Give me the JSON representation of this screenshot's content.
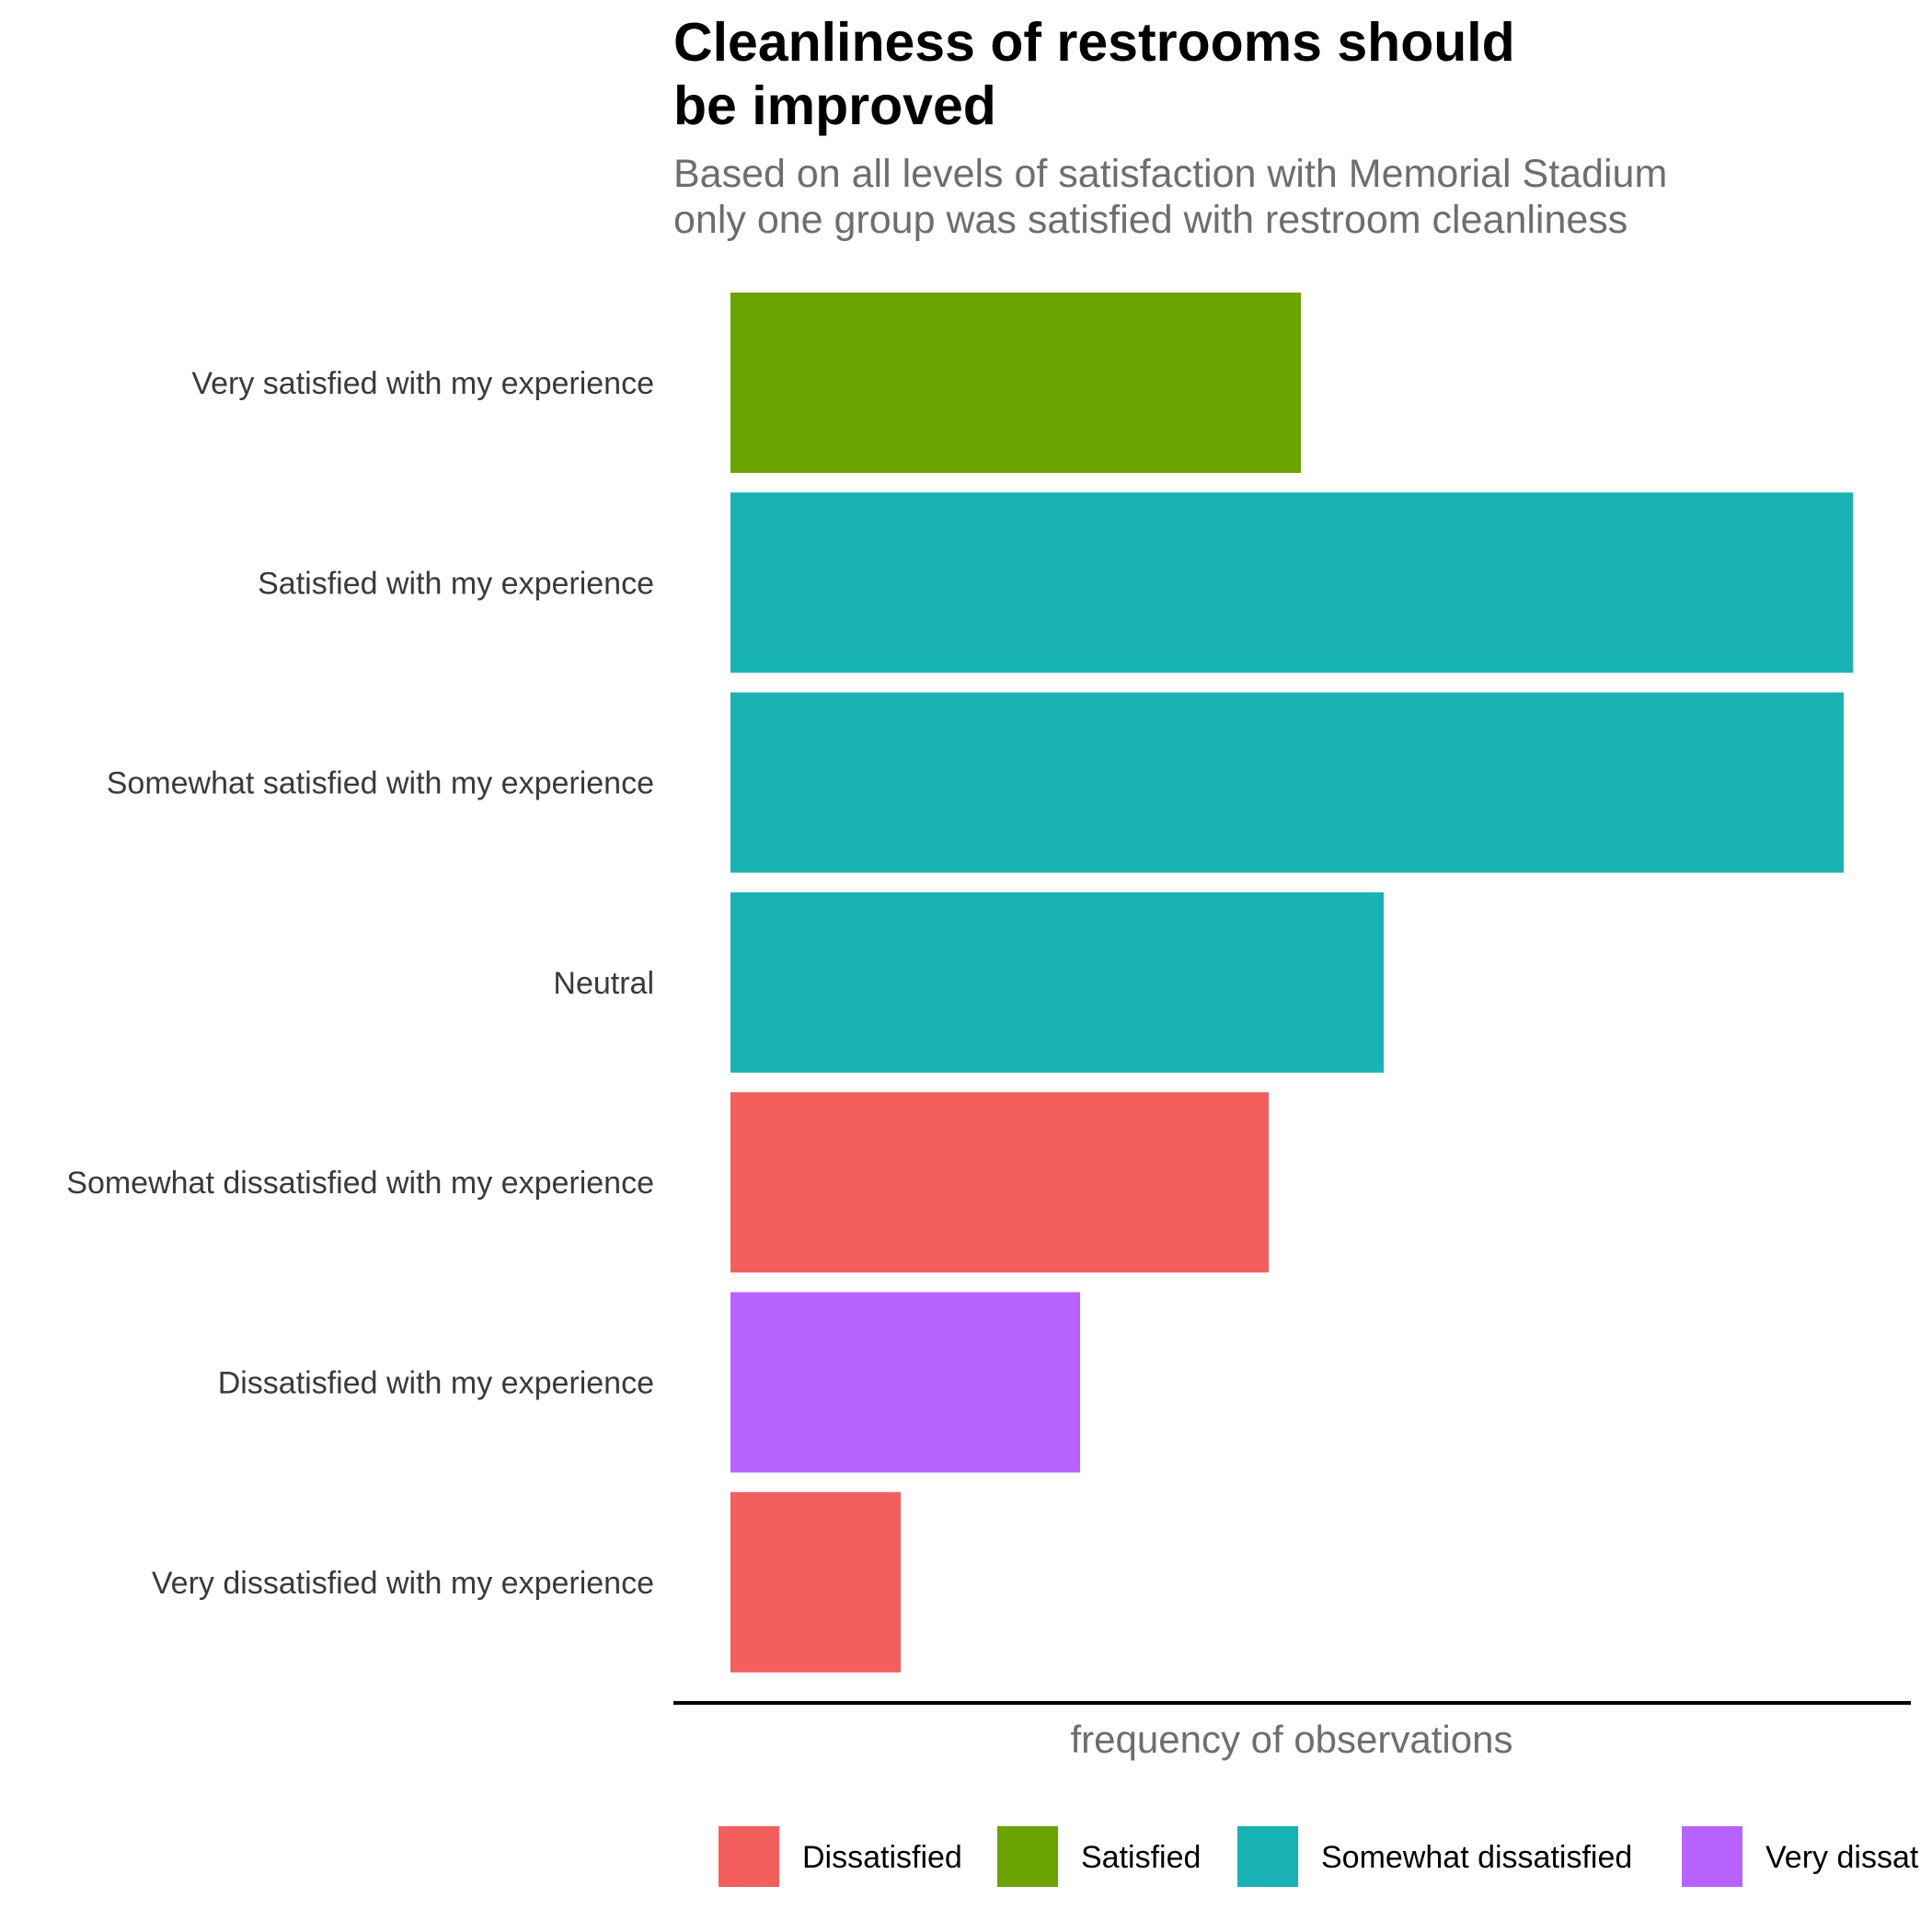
{
  "chart_data": {
    "type": "bar",
    "orientation": "horizontal",
    "title_lines": [
      "Cleanliness of restrooms should",
      "be improved"
    ],
    "subtitle_lines": [
      "Based on all levels of satisfaction with Memorial Stadium",
      "only one group was satisfied with restroom cleanliness"
    ],
    "xlabel": "frequency of observations",
    "ylabel": "",
    "categories": [
      "Very satisfied with my experience",
      "Satisfied with my experience",
      "Somewhat satisfied with my experience",
      "Neutral",
      "Somewhat dissatisfied with my experience",
      "Dissatisfied with my experience",
      "Very dissatisfied with my experience"
    ],
    "values": [
      6.2,
      12.2,
      12.1,
      7.1,
      5.85,
      3.8,
      1.85
    ],
    "bar_groups": [
      "Satisfied",
      "Somewhat dissatisfied",
      "Somewhat dissatisfied",
      "Somewhat dissatisfied",
      "Dissatisfied",
      "Very dissatisfied",
      "Dissatisfied"
    ],
    "xlim": [
      0,
      12.8
    ],
    "x_ticks_shown": false,
    "grid": false,
    "legend": {
      "position": "bottom",
      "entries": [
        {
          "name": "Dissatisfied",
          "color": "#F25F5C"
        },
        {
          "name": "Satisfied",
          "color": "#6BA300"
        },
        {
          "name": "Somewhat dissatisfied",
          "color": "#19B2B5"
        },
        {
          "name": "Very dissatisfied",
          "color": "#B762FE",
          "display_text": "Very dissat"
        }
      ]
    }
  }
}
